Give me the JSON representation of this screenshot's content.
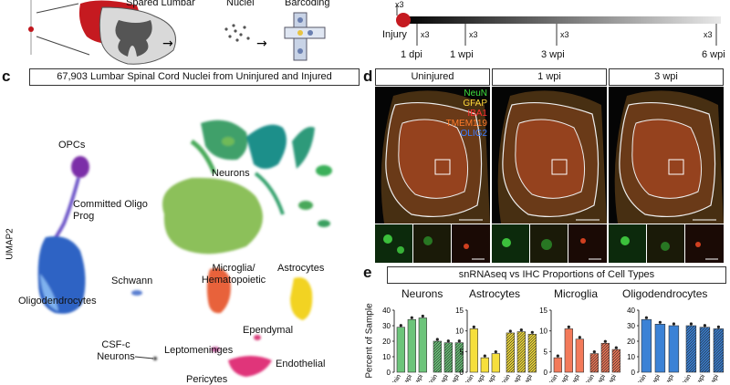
{
  "panel_a": {
    "labels": [
      "Spared Lumbar",
      "Nuclei",
      "Barcoding"
    ]
  },
  "panel_b": {
    "injury_label": "Injury",
    "reps": [
      "x3",
      "x3",
      "x3",
      "x3",
      "x3"
    ],
    "timepoints": [
      "1 dpi",
      "1 wpi",
      "3 wpi",
      "6 wpi"
    ]
  },
  "panel_c": {
    "letter": "c",
    "title": "67,903 Lumbar Spinal Cord Nuclei from Uninjured and Injured",
    "ylabel": "UMAP2",
    "clusters": [
      "OPCs",
      "Committed Oligo Prog",
      "Neurons",
      "Oligodendrocytes",
      "Schwann",
      "Microglia/ Hematopoietic",
      "Astrocytes",
      "Ependymal",
      "CSF-c Neurons",
      "Leptomeninges",
      "Endothelial",
      "Pericytes"
    ],
    "colors": {
      "opc": "#7b2fa8",
      "oligo": "#3b78d4",
      "neuron": "#4aa35a",
      "microglia": "#e8623a",
      "astro": "#f2d324",
      "endo": "#e0357a"
    }
  },
  "panel_d": {
    "letter": "d",
    "columns": [
      "Uninjured",
      "1 wpi",
      "3 wpi"
    ],
    "stain_legend": [
      {
        "name": "NeuN",
        "color": "#3ee03e"
      },
      {
        "name": "GFAP",
        "color": "#ffd83a"
      },
      {
        "name": "IBA1",
        "color": "#ff3030"
      },
      {
        "name": "TMEM119",
        "color": "#ff7a2a"
      },
      {
        "name": "OLIG2",
        "color": "#3a7bff"
      }
    ]
  },
  "panel_e": {
    "letter": "e",
    "title": "snRNAseq vs IHC Proportions of Cell Types",
    "ylabel": "Percent of Sample",
    "xticks": [
      "Unin",
      "1 wpi",
      "3 wpi"
    ]
  },
  "chart_data": [
    {
      "type": "bar",
      "title": "Neurons",
      "ylim": [
        0,
        40
      ],
      "yticks": [
        "0",
        "10",
        "20",
        "30",
        "40"
      ],
      "categories": [
        "Unin",
        "1 wpi",
        "3 wpi",
        "Unin",
        "1 wpi",
        "3 wpi"
      ],
      "values": [
        29,
        34,
        35,
        20,
        19,
        19
      ],
      "color": "#6cc47a"
    },
    {
      "type": "bar",
      "title": "Astrocytes",
      "ylim": [
        0,
        15
      ],
      "yticks": [
        "0",
        "5",
        "10",
        "15"
      ],
      "categories": [
        "Unin",
        "1 wpi",
        "3 wpi",
        "Unin",
        "1 wpi",
        "3 wpi"
      ],
      "values": [
        10.5,
        3.5,
        4.5,
        9.5,
        9.8,
        9.2
      ],
      "color": "#f6df3c"
    },
    {
      "type": "bar",
      "title": "Microglia",
      "ylim": [
        0,
        15
      ],
      "yticks": [
        "0",
        "5",
        "10",
        "15"
      ],
      "categories": [
        "Unin",
        "1 wpi",
        "3 wpi",
        "Unin",
        "1 wpi",
        "3 wpi"
      ],
      "values": [
        3.5,
        10.5,
        8.0,
        4.5,
        7.0,
        5.5
      ],
      "color": "#f37a5a"
    },
    {
      "type": "bar",
      "title": "Oligodendrocytes",
      "ylim": [
        0,
        40
      ],
      "yticks": [
        "0",
        "10",
        "20",
        "30",
        "40"
      ],
      "categories": [
        "Unin",
        "1 wpi",
        "3 wpi",
        "Unin",
        "1 wpi",
        "3 wpi"
      ],
      "values": [
        34,
        31,
        30,
        30,
        29,
        28
      ],
      "color": "#3b82d6"
    }
  ]
}
